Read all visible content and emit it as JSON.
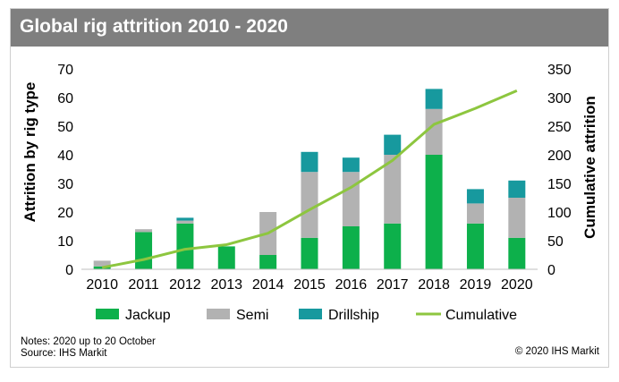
{
  "title": "Global rig attrition 2010 - 2020",
  "notes": {
    "line1": "Notes: 2020 up to 20 October",
    "line2": "Source: IHS Markit"
  },
  "copyright": "© 2020 IHS Markit",
  "chart_data": {
    "type": "bar",
    "stacked": true,
    "title": "Global rig attrition 2010 - 2020",
    "ylabel": "Attrition by rig type",
    "y2label": "Cumulative attrition",
    "ylim": [
      0,
      70
    ],
    "y2lim": [
      0,
      350
    ],
    "yticks": [
      0,
      10,
      20,
      30,
      40,
      50,
      60,
      70
    ],
    "y2ticks": [
      0,
      50,
      100,
      150,
      200,
      250,
      300,
      350
    ],
    "categories": [
      "2010",
      "2011",
      "2012",
      "2013",
      "2014",
      "2015",
      "2016",
      "2017",
      "2018",
      "2019",
      "2020"
    ],
    "series": [
      {
        "name": "Jackup",
        "type": "bar",
        "axis": "left",
        "color": "#0db04b",
        "values": [
          1,
          13,
          16,
          8,
          5,
          11,
          15,
          16,
          40,
          16,
          11
        ]
      },
      {
        "name": "Semi",
        "type": "bar",
        "axis": "left",
        "color": "#b2b2b2",
        "values": [
          2,
          1,
          1,
          0,
          15,
          23,
          19,
          24,
          16,
          7,
          14
        ]
      },
      {
        "name": "Drillship",
        "type": "bar",
        "axis": "left",
        "color": "#17999e",
        "values": [
          0,
          0,
          1,
          0,
          0,
          7,
          5,
          7,
          7,
          5,
          6
        ]
      },
      {
        "name": "Cumulative",
        "type": "line",
        "axis": "right",
        "color": "#8dc63f",
        "values": [
          3,
          17,
          35,
          43,
          63,
          104,
          143,
          190,
          253,
          281,
          312
        ]
      }
    ],
    "legend_position": "bottom",
    "grid": false
  }
}
